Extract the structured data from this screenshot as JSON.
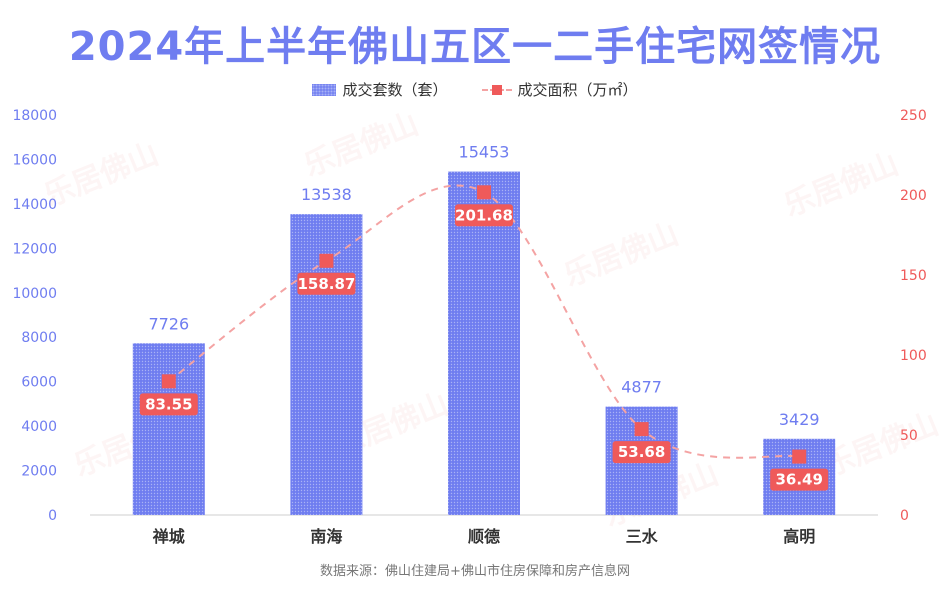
{
  "title": "2024年上半年佛山五区一二手住宅网签情况",
  "source": "数据来源：佛山住建局+佛山市住房保障和房产信息网",
  "watermark": "乐居佛山",
  "colors": {
    "bar": "#6f7df0",
    "bar_label": "#6f7df0",
    "line": "#f4a3a3",
    "marker": "#ef5a5a",
    "left_axis": "#6f7df0",
    "right_axis": "#ef5a5a"
  },
  "chart_data": {
    "type": "bar",
    "categories": [
      "禅城",
      "南海",
      "顺德",
      "三水",
      "高明"
    ],
    "series": [
      {
        "name": "成交套数（套）",
        "type": "bar",
        "axis": "left",
        "values": [
          7726,
          13538,
          15453,
          4877,
          3429
        ]
      },
      {
        "name": "成交面积（万㎡）",
        "type": "line",
        "axis": "right",
        "values": [
          83.55,
          158.87,
          201.68,
          53.68,
          36.49
        ]
      }
    ],
    "y_left": {
      "min": 0,
      "max": 18000,
      "ticks": [
        0,
        2000,
        4000,
        6000,
        8000,
        10000,
        12000,
        14000,
        16000,
        18000
      ]
    },
    "y_right": {
      "min": 0,
      "max": 250,
      "ticks": [
        0,
        50,
        100,
        150,
        200,
        250
      ]
    },
    "legend_position": "top-center",
    "grid": false
  }
}
